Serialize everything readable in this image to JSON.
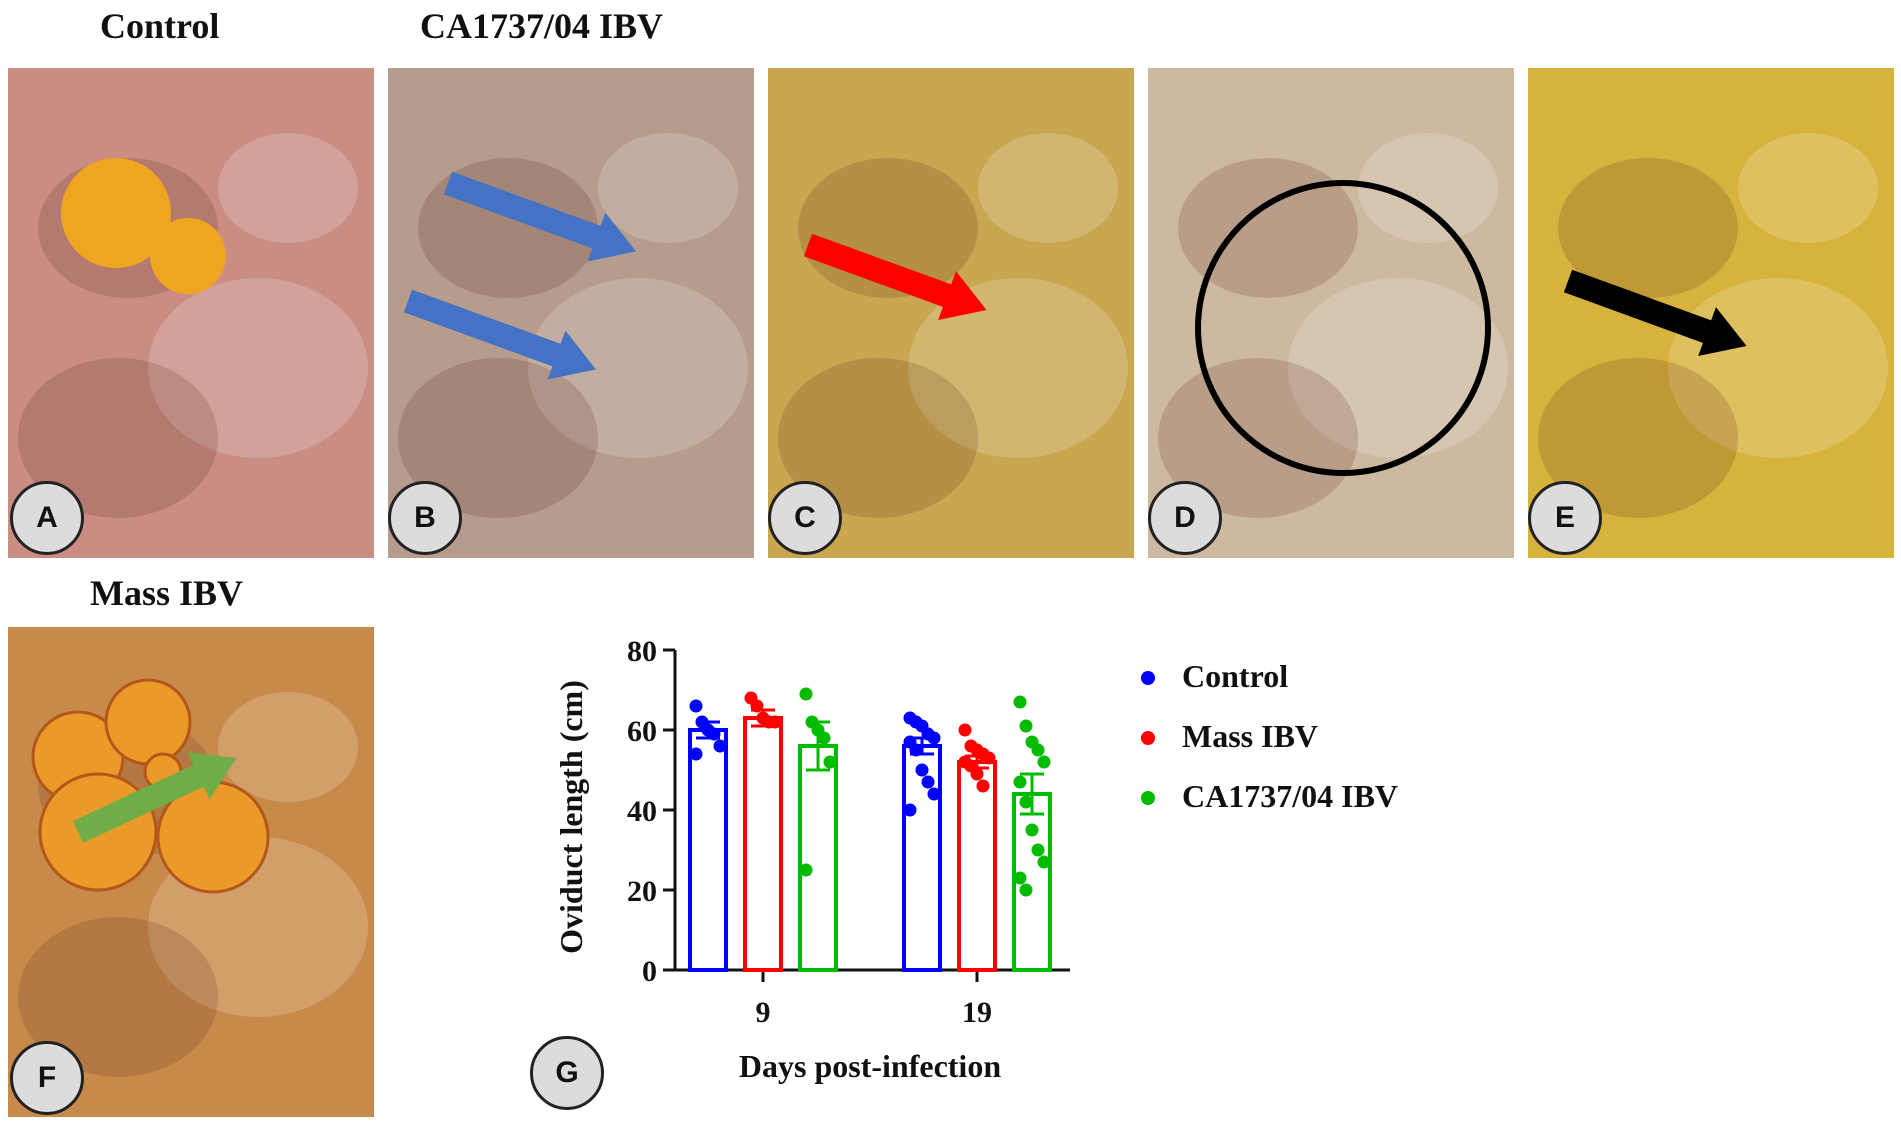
{
  "headings": {
    "control": "Control",
    "ca1737": "CA1737/04 IBV",
    "mass": "Mass IBV"
  },
  "panels": [
    {
      "label": "A",
      "tone": "#c98d83",
      "arrow": null
    },
    {
      "label": "B",
      "tone": "#b59c8d",
      "arrow": "#4472c4"
    },
    {
      "label": "C",
      "tone": "#c9a650",
      "arrow": "#ff0000"
    },
    {
      "label": "D",
      "tone": "#cdb9a0",
      "arrow": null
    },
    {
      "label": "E",
      "tone": "#d7b23c",
      "arrow": "#000000"
    },
    {
      "label": "F",
      "tone": "#c88a4b",
      "arrow": "#70ad47"
    }
  ],
  "chart_label": "G",
  "chart_data": {
    "type": "bar",
    "ylabel": "Oviduct length (cm)",
    "xlabel": "Days post-infection",
    "categories": [
      "9",
      "19"
    ],
    "ylim": [
      0,
      80
    ],
    "yticks": [
      0,
      20,
      40,
      60,
      80
    ],
    "legend_position": "right",
    "series": [
      {
        "name": "Control",
        "color": "#0000ff",
        "values": [
          60,
          56
        ],
        "sem": [
          2,
          2
        ],
        "points": [
          [
            66,
            62,
            60,
            59,
            56,
            54
          ],
          [
            63,
            62,
            61,
            59,
            58,
            57,
            55,
            50,
            47,
            44,
            40
          ]
        ]
      },
      {
        "name": "Mass IBV",
        "color": "#ff0000",
        "values": [
          63,
          52
        ],
        "sem": [
          2,
          1.5
        ],
        "points": [
          [
            68,
            66,
            63,
            62,
            62
          ],
          [
            60,
            56,
            55,
            54,
            53,
            52,
            51,
            49,
            46
          ]
        ]
      },
      {
        "name": "CA1737/04 IBV",
        "color": "#00bb00",
        "values": [
          56,
          44
        ],
        "sem": [
          6,
          5
        ],
        "points": [
          [
            69,
            62,
            60,
            58,
            52,
            25
          ],
          [
            67,
            61,
            57,
            55,
            52,
            47,
            42,
            35,
            30,
            27,
            23,
            20
          ]
        ]
      }
    ]
  }
}
